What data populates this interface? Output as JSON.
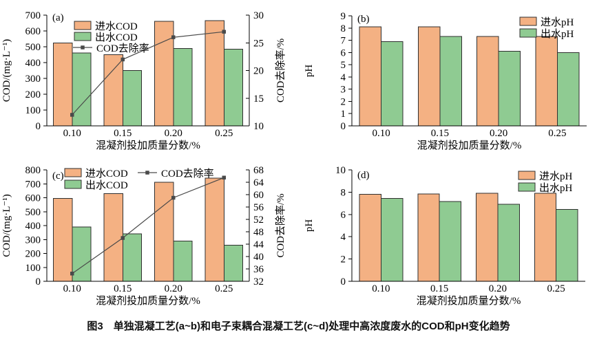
{
  "caption": "图3　单独混凝工艺(a~b)和电子束耦合混凝工艺(c~d)处理中高浓度废水的COD和pH变化趋势",
  "colors": {
    "inflow": "#f4b183",
    "outflow": "#8fcb92",
    "edge": "#2f2f2f",
    "line": "#4a4a4a",
    "axis": "#000000",
    "text": "#000000",
    "background": "#ffffff"
  },
  "chart_data": [
    {
      "type": "bar",
      "panel_label": "(a)",
      "categories": [
        "0.10",
        "0.15",
        "0.20",
        "0.25"
      ],
      "series": [
        {
          "name": "进水COD",
          "color_key": "inflow",
          "values": [
            525,
            450,
            660,
            665
          ]
        },
        {
          "name": "出水COD",
          "color_key": "outflow",
          "values": [
            460,
            350,
            490,
            485
          ]
        }
      ],
      "line_series": {
        "name": "COD去除率",
        "axis": "right",
        "values": [
          12,
          22,
          26,
          27
        ]
      },
      "xlabel": "混凝剂投加质量分数/%",
      "ylabel": "COD/(mg·L⁻¹)",
      "ylim": [
        0,
        700
      ],
      "ytick_step": 100,
      "y2label": "COD去除率/%",
      "y2lim": [
        10,
        30
      ],
      "y2tick_step": 5,
      "legend_position": "inside-top-left",
      "grid": false
    },
    {
      "type": "bar",
      "panel_label": "(b)",
      "categories": [
        "0.10",
        "0.15",
        "0.20",
        "0.25"
      ],
      "series": [
        {
          "name": "进水pH",
          "color_key": "inflow",
          "values": [
            8.1,
            8.1,
            7.3,
            7.3
          ]
        },
        {
          "name": "出水pH",
          "color_key": "outflow",
          "values": [
            6.9,
            7.3,
            6.1,
            6.0
          ]
        }
      ],
      "xlabel": "混凝剂投加质量分数/%",
      "ylabel": "pH",
      "ylim": [
        0,
        9
      ],
      "ytick_step": 1,
      "legend_position": "inside-top-right",
      "grid": false
    },
    {
      "type": "bar",
      "panel_label": "(c)",
      "categories": [
        "0.10",
        "0.15",
        "0.20",
        "0.25"
      ],
      "series": [
        {
          "name": "进水COD",
          "color_key": "inflow",
          "values": [
            595,
            630,
            710,
            740
          ]
        },
        {
          "name": "出水COD",
          "color_key": "outflow",
          "values": [
            390,
            340,
            290,
            260
          ]
        }
      ],
      "line_series": {
        "name": "COD去除率",
        "axis": "right",
        "values": [
          34.5,
          46,
          59,
          65.5
        ]
      },
      "xlabel": "混凝剂投加质量分数/%",
      "ylabel": "COD/(mg·L⁻¹)",
      "ylim": [
        0,
        800
      ],
      "ytick_step": 100,
      "y2label": "COD去除率/%",
      "y2lim": [
        32,
        68
      ],
      "y2tick_step": 4,
      "legend_position": "split-top",
      "grid": false
    },
    {
      "type": "bar",
      "panel_label": "(d)",
      "categories": [
        "0.10",
        "0.15",
        "0.20",
        "0.25"
      ],
      "series": [
        {
          "name": "进水pH",
          "color_key": "inflow",
          "values": [
            7.8,
            7.85,
            7.9,
            7.9
          ]
        },
        {
          "name": "出水pH",
          "color_key": "outflow",
          "values": [
            7.45,
            7.15,
            6.9,
            6.45
          ]
        }
      ],
      "xlabel": "混凝剂投加质量分数/%",
      "ylabel": "pH",
      "ylim": [
        0,
        10
      ],
      "ytick_step": 2,
      "legend_position": "inside-top-right",
      "grid": false
    }
  ]
}
